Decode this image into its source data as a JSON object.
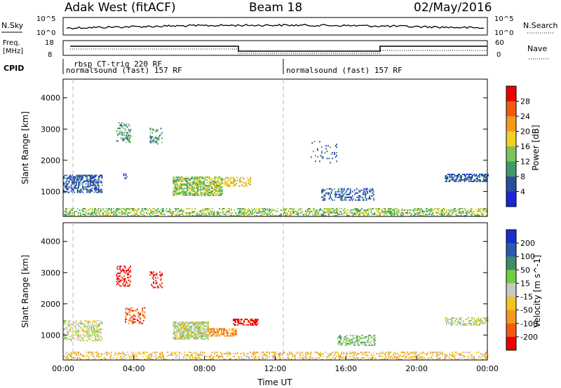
{
  "header": {
    "station": "Adak West (fitACF)",
    "beam": "Beam 18",
    "date": "02/May/2016"
  },
  "strip_labels": {
    "nsky": "N.Sky",
    "nsearch": "N.Search",
    "freq_line1": "Freq.",
    "freq_line2": "[MHz]",
    "nave": "Nave",
    "cpid": "CPID"
  },
  "noise_axis": {
    "left_ticks": [
      "10^5",
      "10^0"
    ],
    "right_ticks": [
      "10^5",
      "10^0"
    ]
  },
  "freq_axis": {
    "left_ticks": [
      "18",
      "8"
    ],
    "right_ticks": [
      "60",
      "0"
    ]
  },
  "cpid_labels": [
    {
      "text": "rbsp_CT-trig 220 RF",
      "hour": 0.9
    },
    {
      "text": "normalsound (fast) 157 RF",
      "hour": 0.45
    },
    {
      "text": "normalsound (fast) 157 RF",
      "hour": 12.6
    }
  ],
  "chart_data": [
    {
      "type": "heatmap",
      "name": "power",
      "ylabel": "Slant Range [km]",
      "xlabel": "",
      "xlim": [
        0,
        24
      ],
      "ylim": [
        200,
        4600
      ],
      "yticks": [
        1000,
        2000,
        3000,
        4000
      ],
      "colorbar": {
        "label": "Power [dB]",
        "ticks": [
          "28",
          "24",
          "20",
          "16",
          "12",
          "8",
          "4"
        ],
        "colors": [
          "#ee0000",
          "#f35a10",
          "#f39a1c",
          "#f3cf22",
          "#7fc457",
          "#3f9a6a",
          "#2a4fa0",
          "#1a26d8"
        ]
      },
      "regions": [
        {
          "t0": 0.0,
          "t1": 2.2,
          "r0": 950,
          "r1": 1500,
          "density": 0.55,
          "level": 1
        },
        {
          "t0": 3.0,
          "t1": 3.8,
          "r0": 2550,
          "r1": 3200,
          "density": 0.35,
          "level": 2
        },
        {
          "t0": 4.9,
          "t1": 5.6,
          "r0": 2500,
          "r1": 3000,
          "density": 0.3,
          "level": 2
        },
        {
          "t0": 3.4,
          "t1": 3.7,
          "r0": 1400,
          "r1": 1600,
          "density": 0.4,
          "level": 1
        },
        {
          "t0": 6.2,
          "t1": 9.0,
          "r0": 850,
          "r1": 1450,
          "density": 0.7,
          "level": 3
        },
        {
          "t0": 9.0,
          "t1": 10.6,
          "r0": 1150,
          "r1": 1450,
          "density": 0.5,
          "level": 4
        },
        {
          "t0": 14.6,
          "t1": 17.6,
          "r0": 700,
          "r1": 1100,
          "density": 0.35,
          "level": 1
        },
        {
          "t0": 21.6,
          "t1": 24.0,
          "r0": 1300,
          "r1": 1550,
          "density": 0.55,
          "level": 1
        },
        {
          "t0": 0.0,
          "t1": 24.0,
          "r0": 200,
          "r1": 450,
          "density": 0.45,
          "level": 3
        },
        {
          "t0": 14.0,
          "t1": 15.5,
          "r0": 1900,
          "r1": 2600,
          "density": 0.12,
          "level": 1
        }
      ]
    },
    {
      "type": "heatmap",
      "name": "velocity",
      "ylabel": "Slant Range [km]",
      "xlabel": "Time UT",
      "xlim": [
        0,
        24
      ],
      "ylim": [
        200,
        4600
      ],
      "yticks": [
        1000,
        2000,
        3000,
        4000
      ],
      "xticks": [
        "00:00",
        "04:00",
        "08:00",
        "12:00",
        "16:00",
        "20:00",
        "00:00"
      ],
      "colorbar": {
        "label": "Velocity [m s^-1]",
        "ticks": [
          "200",
          "100",
          "50",
          "15",
          "-15",
          "-50",
          "-100",
          "-200"
        ],
        "colors": [
          "#1a2ed0",
          "#2a5bb0",
          "#3f8a6a",
          "#6fcf3c",
          "#c8c8c8",
          "#f3c422",
          "#f39a1c",
          "#f35a10",
          "#ee0000"
        ]
      },
      "regions": [
        {
          "t0": 0.0,
          "t1": 2.2,
          "r0": 800,
          "r1": 1450,
          "density": 0.45,
          "level": 4
        },
        {
          "t0": 3.0,
          "t1": 3.8,
          "r0": 2550,
          "r1": 3200,
          "density": 0.35,
          "level": 8
        },
        {
          "t0": 4.9,
          "t1": 5.6,
          "r0": 2500,
          "r1": 3000,
          "density": 0.3,
          "level": 8
        },
        {
          "t0": 3.5,
          "t1": 4.6,
          "r0": 1350,
          "r1": 1850,
          "density": 0.35,
          "level": 7
        },
        {
          "t0": 6.2,
          "t1": 8.2,
          "r0": 850,
          "r1": 1400,
          "density": 0.75,
          "level": 4
        },
        {
          "t0": 8.2,
          "t1": 9.8,
          "r0": 950,
          "r1": 1200,
          "density": 0.6,
          "level": 6
        },
        {
          "t0": 9.6,
          "t1": 11.0,
          "r0": 1300,
          "r1": 1500,
          "density": 0.6,
          "level": 8
        },
        {
          "t0": 15.5,
          "t1": 17.6,
          "r0": 650,
          "r1": 1000,
          "density": 0.45,
          "level": 3
        },
        {
          "t0": 21.6,
          "t1": 24.0,
          "r0": 1300,
          "r1": 1550,
          "density": 0.5,
          "level": 4
        },
        {
          "t0": 0.0,
          "t1": 24.0,
          "r0": 200,
          "r1": 450,
          "density": 0.35,
          "level": 5
        }
      ]
    }
  ]
}
